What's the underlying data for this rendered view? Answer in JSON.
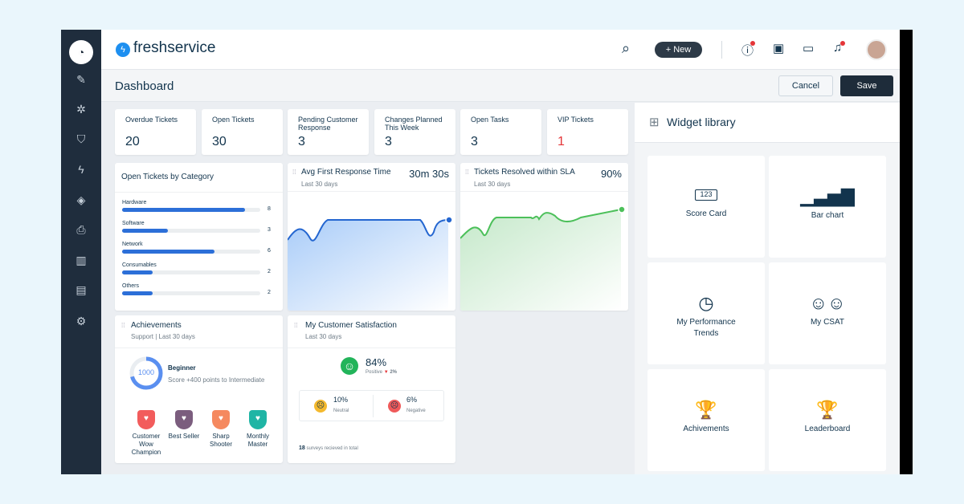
{
  "app": {
    "brand": "freshservice",
    "new_label": "+ New"
  },
  "dashboard": {
    "title": "Dashboard",
    "cancel": "Cancel",
    "save": "Save"
  },
  "kpis": [
    {
      "label": "Overdue Tickets",
      "value": "20"
    },
    {
      "label": "Open Tickets",
      "value": "30"
    },
    {
      "label": "Pending Customer Response",
      "value": "3"
    },
    {
      "label": "Changes Planned This Week",
      "value": "3"
    },
    {
      "label": "Open Tasks",
      "value": "3"
    },
    {
      "label": "VIP Tickets",
      "value": "1"
    }
  ],
  "category": {
    "title": "Open Tickets by Category",
    "max": 9,
    "items": [
      {
        "label": "Hardware",
        "value": 8
      },
      {
        "label": "Software",
        "value": 3
      },
      {
        "label": "Network",
        "value": 6
      },
      {
        "label": "Consumables",
        "value": 2
      },
      {
        "label": "Others",
        "value": 2
      }
    ]
  },
  "response": {
    "title": "Avg First Response Time",
    "sub": "Last 30 days",
    "value": "30m 30s"
  },
  "sla": {
    "title": "Tickets Resolved within SLA",
    "sub": "Last 30 days",
    "value": "90%"
  },
  "achievements": {
    "title": "Achievements",
    "sub": "Support | Last 30 days",
    "score": "1000",
    "progress": 0.71,
    "level": "Beginner",
    "next": "Score +400 points to Intermediate",
    "badges": [
      {
        "label": "Customer Wow Champion",
        "color": "#f25c5c"
      },
      {
        "label": "Best Seller",
        "color": "#7b5d7e"
      },
      {
        "label": "Sharp Shooter",
        "color": "#f5895f"
      },
      {
        "label": "Monthly Master",
        "color": "#1fb5a5"
      }
    ]
  },
  "csat": {
    "title": "My Customer Satisfaction",
    "sub": "Last 30 days",
    "positive": "84%",
    "positive_label": "Positive",
    "change": "2%",
    "neutral": "10%",
    "neutral_label": "Neutral",
    "negative": "6%",
    "negative_label": "Negative",
    "surveys_count": "18",
    "surveys_text": "surveys recieved in total"
  },
  "library": {
    "title": "Widget library",
    "items": [
      {
        "label": "Score Card",
        "icon": "scorecard-icon",
        "glyph": "123"
      },
      {
        "label": "Bar chart",
        "icon": "bar-chart-icon",
        "glyph": "▁▃▅▇"
      },
      {
        "label": "My Performance Trends",
        "icon": "clock-icon",
        "glyph": "◷"
      },
      {
        "label": "My CSAT",
        "icon": "smileys-icon",
        "glyph": "☺☺"
      },
      {
        "label": "Achivements",
        "icon": "trophy-icon",
        "glyph": "🏆"
      },
      {
        "label": "Leaderboard",
        "icon": "trophy-icon",
        "glyph": "🏆"
      }
    ]
  }
}
